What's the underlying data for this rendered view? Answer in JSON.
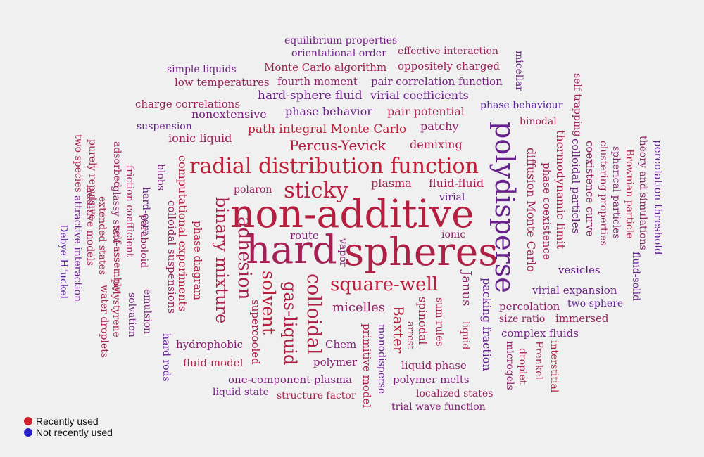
{
  "colors": {
    "recent": "#cc1f2a",
    "not_recent": "#2a22c8"
  },
  "legend": {
    "recent_label": "Recently used",
    "not_recent_label": "Not recently used"
  },
  "words": [
    {
      "text": "hard",
      "weight": 0.26,
      "vertical": false
    },
    {
      "text": "spheres",
      "weight": 0.18,
      "vertical": false
    },
    {
      "text": "non-additive",
      "weight": 0.14,
      "vertical": false
    },
    {
      "text": "polydisperse",
      "weight": 0.62,
      "vertical": true
    },
    {
      "text": "radial distribution function",
      "weight": 0.08,
      "vertical": false
    },
    {
      "text": "sticky",
      "weight": 0.12,
      "vertical": false
    },
    {
      "text": "binary mixture",
      "weight": 0.2,
      "vertical": true
    },
    {
      "text": "adhesion",
      "weight": 0.24,
      "vertical": true
    },
    {
      "text": "solvent",
      "weight": 0.1,
      "vertical": true
    },
    {
      "text": "gas-liquid",
      "weight": 0.16,
      "vertical": true
    },
    {
      "text": "colloidal",
      "weight": 0.18,
      "vertical": true
    },
    {
      "text": "square-well",
      "weight": 0.12,
      "vertical": false
    },
    {
      "text": "Janus",
      "weight": 0.38,
      "vertical": true
    },
    {
      "text": "Baxter",
      "weight": 0.14,
      "vertical": true
    },
    {
      "text": "micelles",
      "weight": 0.38,
      "vertical": false
    },
    {
      "text": "Percus-Yevick",
      "weight": 0.16,
      "vertical": false
    },
    {
      "text": "path integral Monte Carlo",
      "weight": 0.1,
      "vertical": false
    },
    {
      "text": "demixing",
      "weight": 0.22,
      "vertical": false
    },
    {
      "text": "plasma",
      "weight": 0.2,
      "vertical": false
    },
    {
      "text": "fluid-fluid",
      "weight": 0.26,
      "vertical": false
    },
    {
      "text": "polaron",
      "weight": 0.32,
      "vertical": false
    },
    {
      "text": "virial",
      "weight": 0.62,
      "vertical": false
    },
    {
      "text": "route",
      "weight": 0.48,
      "vertical": false
    },
    {
      "text": "vapor",
      "weight": 0.44,
      "vertical": true
    },
    {
      "text": "ionic",
      "weight": 0.4,
      "vertical": false
    },
    {
      "text": "computational experiments",
      "weight": 0.16,
      "vertical": true
    },
    {
      "text": "colloidal suspensions",
      "weight": 0.32,
      "vertical": true
    },
    {
      "text": "phase diagram",
      "weight": 0.18,
      "vertical": true
    },
    {
      "text": "blobs",
      "weight": 0.5,
      "vertical": true
    },
    {
      "text": "hard-core",
      "weight": 0.58,
      "vertical": true
    },
    {
      "text": "paraboloid",
      "weight": 0.36,
      "vertical": true
    },
    {
      "text": "friction coefficient",
      "weight": 0.3,
      "vertical": true
    },
    {
      "text": "adsorbed",
      "weight": 0.3,
      "vertical": true
    },
    {
      "text": "glassy state",
      "weight": 0.38,
      "vertical": true
    },
    {
      "text": "self-assembly",
      "weight": 0.24,
      "vertical": true
    },
    {
      "text": "extended states",
      "weight": 0.22,
      "vertical": true
    },
    {
      "text": "purely repulsive",
      "weight": 0.24,
      "vertical": true
    },
    {
      "text": "additive models",
      "weight": 0.28,
      "vertical": true
    },
    {
      "text": "two species",
      "weight": 0.2,
      "vertical": true
    },
    {
      "text": "attractive interaction",
      "weight": 0.6,
      "vertical": true
    },
    {
      "text": "Debye-H\"uckel",
      "weight": 0.7,
      "vertical": true
    },
    {
      "text": "polystyrene",
      "weight": 0.24,
      "vertical": true
    },
    {
      "text": "water droplets",
      "weight": 0.26,
      "vertical": true
    },
    {
      "text": "solvation",
      "weight": 0.54,
      "vertical": true
    },
    {
      "text": "emulsion",
      "weight": 0.48,
      "vertical": true
    },
    {
      "text": "hard rods",
      "weight": 0.66,
      "vertical": true
    },
    {
      "text": "hydrophobic",
      "weight": 0.44,
      "vertical": false
    },
    {
      "text": "fluid model",
      "weight": 0.2,
      "vertical": false
    },
    {
      "text": "supercooled",
      "weight": 0.22,
      "vertical": true
    },
    {
      "text": "Chem",
      "weight": 0.5,
      "vertical": false
    },
    {
      "text": "polymer",
      "weight": 0.44,
      "vertical": false
    },
    {
      "text": "one-component plasma",
      "weight": 0.5,
      "vertical": false
    },
    {
      "text": "liquid state",
      "weight": 0.56,
      "vertical": false
    },
    {
      "text": "structure factor",
      "weight": 0.24,
      "vertical": false
    },
    {
      "text": "primitive model",
      "weight": 0.22,
      "vertical": true
    },
    {
      "text": "monodisperse",
      "weight": 0.6,
      "vertical": true
    },
    {
      "text": "arrest",
      "weight": 0.28,
      "vertical": true
    },
    {
      "text": "spinodal",
      "weight": 0.22,
      "vertical": true
    },
    {
      "text": "sum rules",
      "weight": 0.22,
      "vertical": true
    },
    {
      "text": "liquid",
      "weight": 0.2,
      "vertical": true
    },
    {
      "text": "liquid phase",
      "weight": 0.36,
      "vertical": false
    },
    {
      "text": "polymer melts",
      "weight": 0.5,
      "vertical": false
    },
    {
      "text": "localized states",
      "weight": 0.3,
      "vertical": false
    },
    {
      "text": "trial wave function",
      "weight": 0.46,
      "vertical": false
    },
    {
      "text": "packing fraction",
      "weight": 0.64,
      "vertical": true
    },
    {
      "text": "microgels",
      "weight": 0.38,
      "vertical": true
    },
    {
      "text": "droplet",
      "weight": 0.26,
      "vertical": true
    },
    {
      "text": "Frenkel",
      "weight": 0.24,
      "vertical": true
    },
    {
      "text": "interstitial",
      "weight": 0.14,
      "vertical": true
    },
    {
      "text": "percolation",
      "weight": 0.4,
      "vertical": false
    },
    {
      "text": "size ratio",
      "weight": 0.34,
      "vertical": false
    },
    {
      "text": "complex fluids",
      "weight": 0.56,
      "vertical": false
    },
    {
      "text": "immersed",
      "weight": 0.3,
      "vertical": false
    },
    {
      "text": "two-sphere",
      "weight": 0.66,
      "vertical": false
    },
    {
      "text": "virial expansion",
      "weight": 0.6,
      "vertical": false
    },
    {
      "text": "vesicles",
      "weight": 0.62,
      "vertical": false
    },
    {
      "text": "fluid-solid",
      "weight": 0.62,
      "vertical": true
    },
    {
      "text": "diffusion Monte Carlo",
      "weight": 0.28,
      "vertical": true
    },
    {
      "text": "phase coexistence",
      "weight": 0.28,
      "vertical": true
    },
    {
      "text": "thermodynamic limit",
      "weight": 0.22,
      "vertical": true
    },
    {
      "text": "colloidal particles",
      "weight": 0.56,
      "vertical": true
    },
    {
      "text": "coexistence curve",
      "weight": 0.36,
      "vertical": true
    },
    {
      "text": "clustering properties",
      "weight": 0.3,
      "vertical": true
    },
    {
      "text": "spherical particles",
      "weight": 0.44,
      "vertical": true
    },
    {
      "text": "Brownian particle",
      "weight": 0.2,
      "vertical": true
    },
    {
      "text": "theory and simulations",
      "weight": 0.4,
      "vertical": true
    },
    {
      "text": "percolation threshold",
      "weight": 0.66,
      "vertical": true
    },
    {
      "text": "binodal",
      "weight": 0.26,
      "vertical": false
    },
    {
      "text": "self-trapping",
      "weight": 0.28,
      "vertical": true
    },
    {
      "text": "micellar",
      "weight": 0.58,
      "vertical": true
    },
    {
      "text": "phase behaviour",
      "weight": 0.72,
      "vertical": false
    },
    {
      "text": "equilibrium properties",
      "weight": 0.56,
      "vertical": false
    },
    {
      "text": "orientational order",
      "weight": 0.58,
      "vertical": false
    },
    {
      "text": "effective interaction",
      "weight": 0.3,
      "vertical": false
    },
    {
      "text": "simple liquids",
      "weight": 0.56,
      "vertical": false
    },
    {
      "text": "Monte Carlo algorithm",
      "weight": 0.26,
      "vertical": false
    },
    {
      "text": "oppositely charged",
      "weight": 0.3,
      "vertical": false
    },
    {
      "text": "low temperatures",
      "weight": 0.3,
      "vertical": false
    },
    {
      "text": "fourth moment",
      "weight": 0.4,
      "vertical": false
    },
    {
      "text": "pair correlation function",
      "weight": 0.54,
      "vertical": false
    },
    {
      "text": "hard-sphere fluid",
      "weight": 0.58,
      "vertical": false
    },
    {
      "text": "virial coefficients",
      "weight": 0.6,
      "vertical": false
    },
    {
      "text": "charge correlations",
      "weight": 0.3,
      "vertical": false
    },
    {
      "text": "phase behavior",
      "weight": 0.6,
      "vertical": false
    },
    {
      "text": "pair potential",
      "weight": 0.24,
      "vertical": false
    },
    {
      "text": "nonextensive",
      "weight": 0.52,
      "vertical": false
    },
    {
      "text": "suspension",
      "weight": 0.62,
      "vertical": false
    },
    {
      "text": "patchy",
      "weight": 0.4,
      "vertical": false
    },
    {
      "text": "ionic liquid",
      "weight": 0.3,
      "vertical": false
    }
  ]
}
